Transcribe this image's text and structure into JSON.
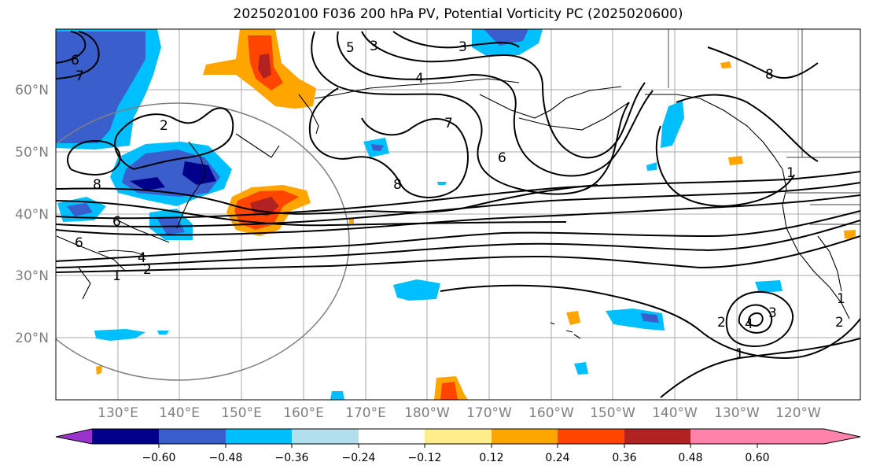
{
  "title": "2025020100 F036 200 hPa PV, Potential Vorticity PC (2025020600)",
  "lat_labels": [
    "60°N",
    "50°N",
    "40°N",
    "30°N",
    "20°N"
  ],
  "lon_labels": [
    "130°E",
    "140°E",
    "150°E",
    "160°E",
    "170°E",
    "180°W",
    "170°W",
    "160°W",
    "150°W",
    "140°W",
    "130°W",
    "120°W"
  ],
  "colorbar": {
    "colors": [
      "#9a32cd",
      "#00008b",
      "#3a5fcd",
      "#00bfff",
      "#b2dfee",
      "#ffffff",
      "#ffec8b",
      "#ffa500",
      "#ff4500",
      "#b22222",
      "#ff82ab"
    ],
    "tick_labels": [
      "−0.60",
      "−0.48",
      "−0.36",
      "−0.24",
      "−0.12",
      "0.12",
      "0.24",
      "0.36",
      "0.48",
      "0.60"
    ]
  },
  "contour_labels": [
    "6",
    "7",
    "8",
    "6",
    "6",
    "4",
    "2",
    "1",
    "5",
    "3",
    "4",
    "3",
    "8",
    "7",
    "6",
    "8",
    "1",
    "2",
    "4",
    "3",
    "2",
    "1",
    "1",
    "2"
  ]
}
